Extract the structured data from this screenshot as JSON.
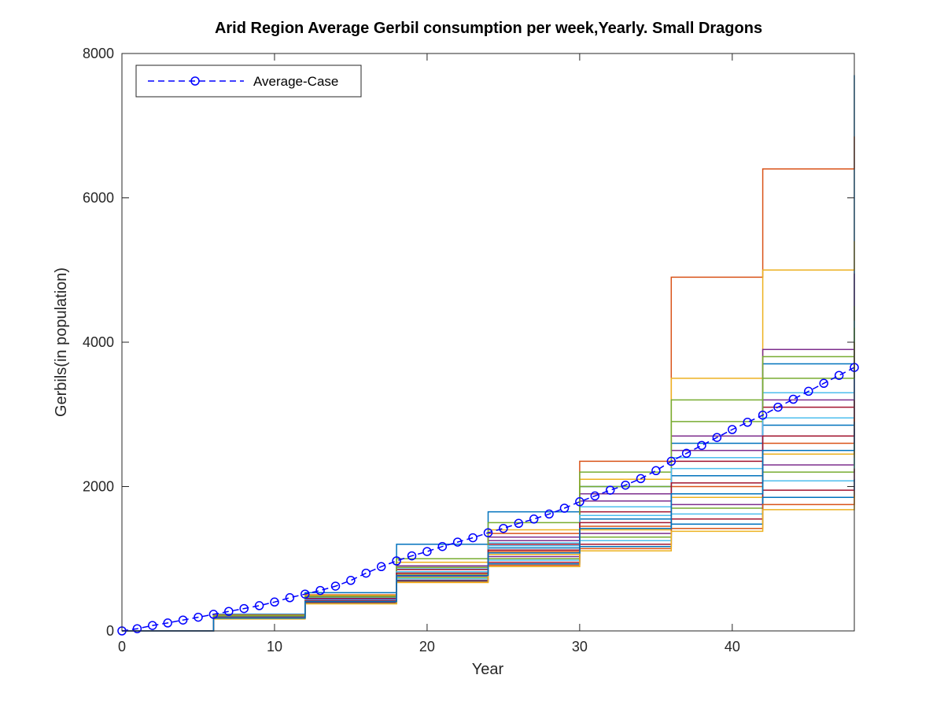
{
  "chart_data": {
    "type": "line",
    "title": "Arid Region Average Gerbil consumption per week,Yearly. Small Dragons",
    "xlabel": "Year",
    "ylabel": "Gerbils(in population)",
    "xlim": [
      0,
      48
    ],
    "ylim": [
      0,
      8000
    ],
    "xticks": [
      0,
      10,
      20,
      30,
      40
    ],
    "yticks": [
      0,
      2000,
      4000,
      6000,
      8000
    ],
    "grid": false,
    "legend": {
      "position": "top-left",
      "entries": [
        "Average-Case"
      ]
    },
    "average_series": {
      "name": "Average-Case",
      "color": "#0000ff",
      "linestyle": "dashed",
      "marker": "circle",
      "x": [
        0,
        1,
        2,
        3,
        4,
        5,
        6,
        7,
        8,
        9,
        10,
        11,
        12,
        13,
        14,
        15,
        16,
        17,
        18,
        19,
        20,
        21,
        22,
        23,
        24,
        25,
        26,
        27,
        28,
        29,
        30,
        31,
        32,
        33,
        34,
        35,
        36,
        37,
        38,
        39,
        40,
        41,
        42,
        43,
        44,
        45,
        46,
        47,
        48
      ],
      "y": [
        0,
        30,
        75,
        110,
        150,
        190,
        230,
        270,
        310,
        350,
        400,
        460,
        510,
        560,
        620,
        700,
        800,
        890,
        970,
        1040,
        1100,
        1170,
        1230,
        1290,
        1360,
        1420,
        1490,
        1550,
        1620,
        1700,
        1790,
        1870,
        1950,
        2020,
        2110,
        2220,
        2350,
        2460,
        2570,
        2680,
        2790,
        2890,
        2990,
        3100,
        3210,
        3320,
        3430,
        3540,
        3650
      ]
    },
    "simulation_series_colors": [
      "#0072bd",
      "#d95319",
      "#edb120",
      "#7e2f8e",
      "#77ac30",
      "#4dbeee",
      "#a2142f"
    ],
    "simulation_series": [
      {
        "x": [
          0,
          6,
          12,
          18,
          24,
          30,
          36,
          42,
          48
        ],
        "y": [
          0,
          230,
          530,
          1200,
          1650,
          2000,
          2600,
          3700,
          7700
        ]
      },
      {
        "x": [
          0,
          6,
          12,
          18,
          24,
          30,
          36,
          42,
          48
        ],
        "y": [
          0,
          220,
          500,
          950,
          1350,
          2350,
          4900,
          6400,
          6850
        ]
      },
      {
        "x": [
          0,
          6,
          12,
          18,
          24,
          30,
          36,
          42,
          48
        ],
        "y": [
          0,
          215,
          490,
          950,
          1400,
          2100,
          3500,
          5000,
          5400
        ]
      },
      {
        "x": [
          0,
          6,
          12,
          18,
          24,
          30,
          36,
          42,
          48
        ],
        "y": [
          0,
          210,
          470,
          900,
          1250,
          1800,
          2700,
          3900,
          4950
        ]
      },
      {
        "x": [
          0,
          6,
          12,
          18,
          24,
          30,
          36,
          42,
          48
        ],
        "y": [
          0,
          205,
          460,
          880,
          1300,
          2000,
          3200,
          3800,
          4500
        ]
      },
      {
        "x": [
          0,
          6,
          12,
          18,
          24,
          30,
          36,
          42,
          48
        ],
        "y": [
          0,
          200,
          455,
          860,
          1220,
          1720,
          2400,
          3300,
          4300
        ]
      },
      {
        "x": [
          0,
          6,
          12,
          18,
          24,
          30,
          36,
          42,
          48
        ],
        "y": [
          0,
          200,
          450,
          850,
          1200,
          1650,
          2350,
          3100,
          4000
        ]
      },
      {
        "x": [
          0,
          6,
          12,
          18,
          24,
          30,
          36,
          42,
          48
        ],
        "y": [
          0,
          195,
          440,
          820,
          1150,
          1550,
          2150,
          2850,
          3600
        ]
      },
      {
        "x": [
          0,
          6,
          12,
          18,
          24,
          30,
          36,
          42,
          48
        ],
        "y": [
          0,
          190,
          430,
          800,
          1100,
          1450,
          2000,
          2600,
          3300
        ]
      },
      {
        "x": [
          0,
          6,
          12,
          18,
          24,
          30,
          36,
          42,
          48
        ],
        "y": [
          0,
          185,
          420,
          780,
          1060,
          1400,
          1850,
          2450,
          3000
        ]
      },
      {
        "x": [
          0,
          6,
          12,
          18,
          24,
          30,
          36,
          42,
          48
        ],
        "y": [
          0,
          180,
          410,
          760,
          1030,
          1350,
          1750,
          2300,
          2800
        ]
      },
      {
        "x": [
          0,
          6,
          12,
          18,
          24,
          30,
          36,
          42,
          48
        ],
        "y": [
          0,
          178,
          400,
          740,
          1000,
          1300,
          1700,
          2200,
          2600
        ]
      },
      {
        "x": [
          0,
          6,
          12,
          18,
          24,
          30,
          36,
          42,
          48
        ],
        "y": [
          0,
          175,
          395,
          720,
          980,
          1250,
          1620,
          2080,
          2400
        ]
      },
      {
        "x": [
          0,
          6,
          12,
          18,
          24,
          30,
          36,
          42,
          48
        ],
        "y": [
          0,
          172,
          390,
          700,
          950,
          1200,
          1550,
          1950,
          2250
        ]
      },
      {
        "x": [
          0,
          6,
          12,
          18,
          24,
          30,
          36,
          42,
          48
        ],
        "y": [
          0,
          170,
          385,
          690,
          930,
          1170,
          1480,
          1850,
          2100
        ]
      },
      {
        "x": [
          0,
          6,
          12,
          18,
          24,
          30,
          36,
          42,
          48
        ],
        "y": [
          0,
          168,
          380,
          680,
          910,
          1140,
          1420,
          1750,
          1950
        ]
      },
      {
        "x": [
          0,
          6,
          12,
          18,
          24,
          30,
          36,
          42,
          48
        ],
        "y": [
          0,
          165,
          375,
          670,
          890,
          1110,
          1380,
          1680,
          1880
        ]
      },
      {
        "x": [
          0,
          6,
          12,
          18,
          24,
          30,
          36,
          42,
          48
        ],
        "y": [
          0,
          190,
          440,
          900,
          1300,
          1900,
          2500,
          3200,
          3900
        ]
      },
      {
        "x": [
          0,
          6,
          12,
          18,
          24,
          30,
          36,
          42,
          48
        ],
        "y": [
          0,
          210,
          480,
          1000,
          1500,
          2200,
          2900,
          3500,
          4200
        ]
      },
      {
        "x": [
          0,
          6,
          12,
          18,
          24,
          30,
          36,
          42,
          48
        ],
        "y": [
          0,
          185,
          425,
          820,
          1180,
          1600,
          2250,
          2950,
          3500
        ]
      },
      {
        "x": [
          0,
          6,
          12,
          18,
          24,
          30,
          36,
          42,
          48
        ],
        "y": [
          0,
          182,
          415,
          800,
          1120,
          1500,
          2050,
          2700,
          3200
        ]
      },
      {
        "x": [
          0,
          6,
          12,
          18,
          24,
          30,
          36,
          42,
          48
        ],
        "y": [
          0,
          178,
          405,
          770,
          1080,
          1420,
          1900,
          2500,
          2900
        ]
      }
    ]
  }
}
